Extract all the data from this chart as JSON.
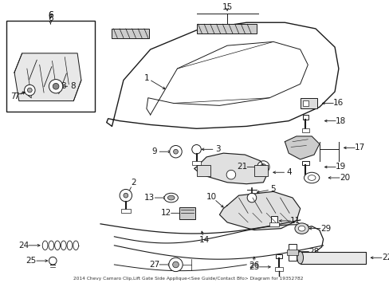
{
  "title": "2014 Chevy Camaro Clip,Lift Gate Side Applique<See Guide/Contact Bfo> Diagram for 19352782",
  "bg_color": "#ffffff",
  "line_color": "#1a1a1a",
  "figsize": [
    4.89,
    3.6
  ],
  "dpi": 100
}
